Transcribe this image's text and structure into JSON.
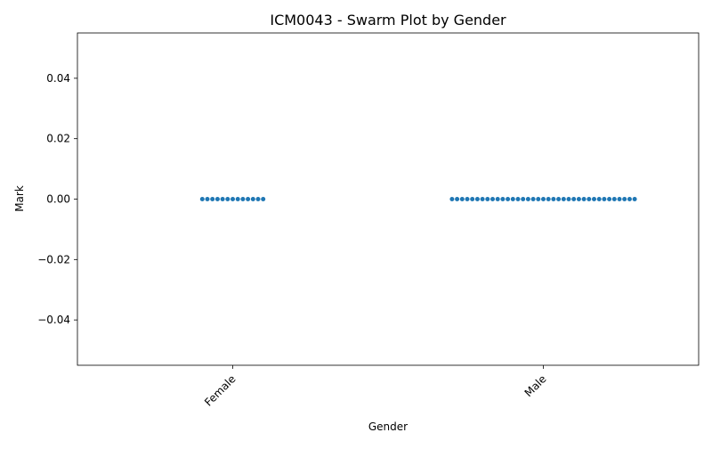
{
  "chart_data": {
    "type": "scatter",
    "subtype": "swarm",
    "title": "ICM0043 - Swarm Plot by Gender",
    "xlabel": "Gender",
    "ylabel": "Mark",
    "categories": [
      "Female",
      "Male"
    ],
    "series": [
      {
        "color": "#1f77b4",
        "groups": [
          {
            "category": "Female",
            "values": [
              0,
              0,
              0,
              0,
              0,
              0,
              0,
              0,
              0,
              0,
              0,
              0,
              0
            ]
          },
          {
            "category": "Male",
            "values": [
              0,
              0,
              0,
              0,
              0,
              0,
              0,
              0,
              0,
              0,
              0,
              0,
              0,
              0,
              0,
              0,
              0,
              0,
              0,
              0,
              0,
              0,
              0,
              0,
              0,
              0,
              0,
              0,
              0,
              0,
              0,
              0,
              0,
              0,
              0,
              0,
              0
            ]
          }
        ]
      }
    ],
    "ylim": [
      -0.055,
      0.055
    ],
    "yticks": [
      -0.04,
      -0.02,
      0.0,
      0.02,
      0.04
    ],
    "ytick_labels": [
      "−0.04",
      "−0.02",
      "0.00",
      "0.02",
      "0.04"
    ],
    "xtick_rotation_deg": 45,
    "grid": false,
    "legend": "none"
  }
}
